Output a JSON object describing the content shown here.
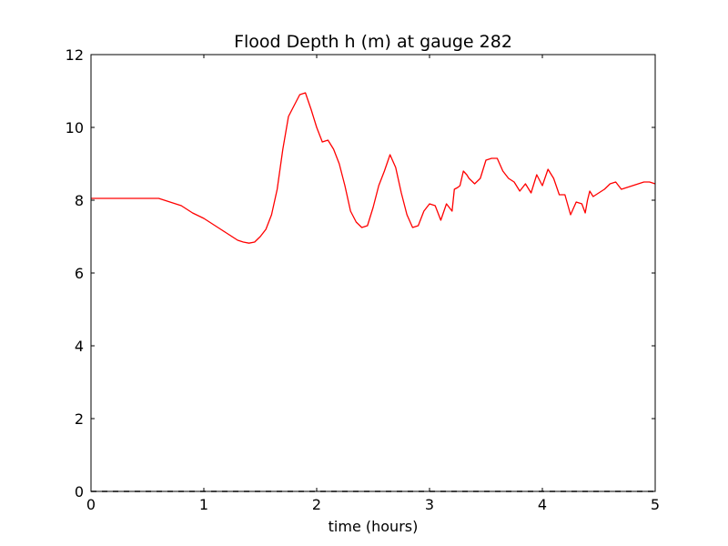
{
  "chart_data": {
    "type": "line",
    "title": "Flood Depth h (m) at gauge 282",
    "xlabel": "time (hours)",
    "ylabel": "",
    "xlim": [
      0,
      5
    ],
    "ylim": [
      0,
      12
    ],
    "xticks": [
      "0",
      "1",
      "2",
      "3",
      "4",
      "5"
    ],
    "yticks": [
      "0",
      "2",
      "4",
      "6",
      "8",
      "10",
      "12"
    ],
    "grid": false,
    "legend": "none",
    "series": [
      {
        "color": "#ff0000",
        "style": "solid",
        "x": [
          0,
          0.2,
          0.4,
          0.6,
          0.7,
          0.8,
          0.9,
          1.0,
          1.1,
          1.15,
          1.2,
          1.3,
          1.35,
          1.4,
          1.45,
          1.5,
          1.55,
          1.6,
          1.65,
          1.7,
          1.75,
          1.8,
          1.85,
          1.9,
          1.95,
          2.0,
          2.05,
          2.1,
          2.15,
          2.2,
          2.25,
          2.3,
          2.35,
          2.4,
          2.45,
          2.5,
          2.55,
          2.6,
          2.65,
          2.7,
          2.75,
          2.8,
          2.85,
          2.9,
          2.95,
          3.0,
          3.05,
          3.1,
          3.15,
          3.2,
          3.22,
          3.25,
          3.27,
          3.3,
          3.33,
          3.35,
          3.4,
          3.45,
          3.5,
          3.55,
          3.6,
          3.65,
          3.7,
          3.75,
          3.8,
          3.85,
          3.9,
          3.95,
          4.0,
          4.05,
          4.1,
          4.15,
          4.2,
          4.25,
          4.3,
          4.35,
          4.38,
          4.4,
          4.42,
          4.45,
          4.5,
          4.55,
          4.6,
          4.65,
          4.7,
          4.75,
          4.8,
          4.85,
          4.9,
          4.95,
          5.0
        ],
        "y": [
          8.05,
          8.05,
          8.05,
          8.05,
          7.95,
          7.85,
          7.65,
          7.5,
          7.3,
          7.2,
          7.1,
          6.9,
          6.85,
          6.82,
          6.85,
          7.0,
          7.2,
          7.6,
          8.3,
          9.4,
          10.3,
          10.6,
          10.9,
          10.95,
          10.5,
          10.0,
          9.6,
          9.65,
          9.4,
          9.0,
          8.4,
          7.7,
          7.4,
          7.25,
          7.3,
          7.8,
          8.4,
          8.8,
          9.25,
          8.9,
          8.2,
          7.6,
          7.25,
          7.3,
          7.7,
          7.9,
          7.85,
          7.45,
          7.9,
          7.7,
          8.3,
          8.35,
          8.4,
          8.8,
          8.7,
          8.6,
          8.45,
          8.6,
          9.1,
          9.15,
          9.15,
          8.8,
          8.6,
          8.5,
          8.25,
          8.45,
          8.2,
          8.7,
          8.4,
          8.85,
          8.6,
          8.15,
          8.15,
          7.6,
          7.95,
          7.9,
          7.65,
          8.0,
          8.25,
          8.1,
          8.2,
          8.3,
          8.45,
          8.5,
          8.3,
          8.35,
          8.4,
          8.45,
          8.5,
          8.5,
          8.45
        ]
      },
      {
        "color": "#000000",
        "style": "dashed",
        "x": [
          0,
          5
        ],
        "y": [
          0,
          0
        ]
      }
    ]
  }
}
